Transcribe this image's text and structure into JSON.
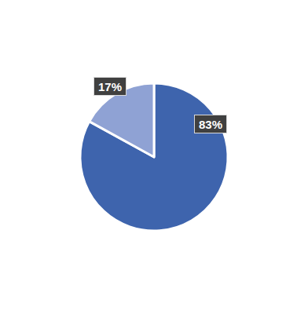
{
  "chart_data": {
    "type": "pie",
    "values": [
      83,
      17
    ],
    "value_labels": [
      "83%",
      "17%"
    ],
    "colors": [
      "#3e64ad",
      "#8fa2d4"
    ],
    "data_labels": true
  }
}
